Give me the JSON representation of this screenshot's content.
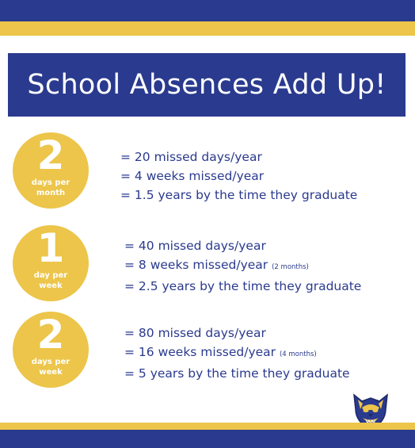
{
  "title": "School Absences Add Up!",
  "colors": {
    "navy": "#2a3a8e",
    "gold": "#ecc54a",
    "text": "#2a3a8e"
  },
  "rows": [
    {
      "number": "2",
      "unit": "days per month",
      "lines": [
        {
          "text": "= 20 missed days/year",
          "note": ""
        },
        {
          "text": "= 4 weeks missed/year",
          "note": ""
        },
        {
          "text": "= 1.5 years by the time they graduate",
          "note": ""
        }
      ]
    },
    {
      "number": "1",
      "unit": "day per week",
      "lines": [
        {
          "text": "= 40 missed days/year",
          "note": ""
        },
        {
          "text": "= 8 weeks missed/year",
          "note": "(2 months)"
        },
        {
          "text": "= 2.5 years by the time they graduate",
          "note": ""
        }
      ]
    },
    {
      "number": "2",
      "unit": "days per week",
      "lines": [
        {
          "text": "= 80 missed days/year",
          "note": ""
        },
        {
          "text": "= 16 weeks missed/year",
          "note": "(4 months)"
        },
        {
          "text": "= 5 years by the time they graduate",
          "note": ""
        }
      ]
    }
  ],
  "logo": {
    "icon": "wildcat-mascot-icon"
  }
}
